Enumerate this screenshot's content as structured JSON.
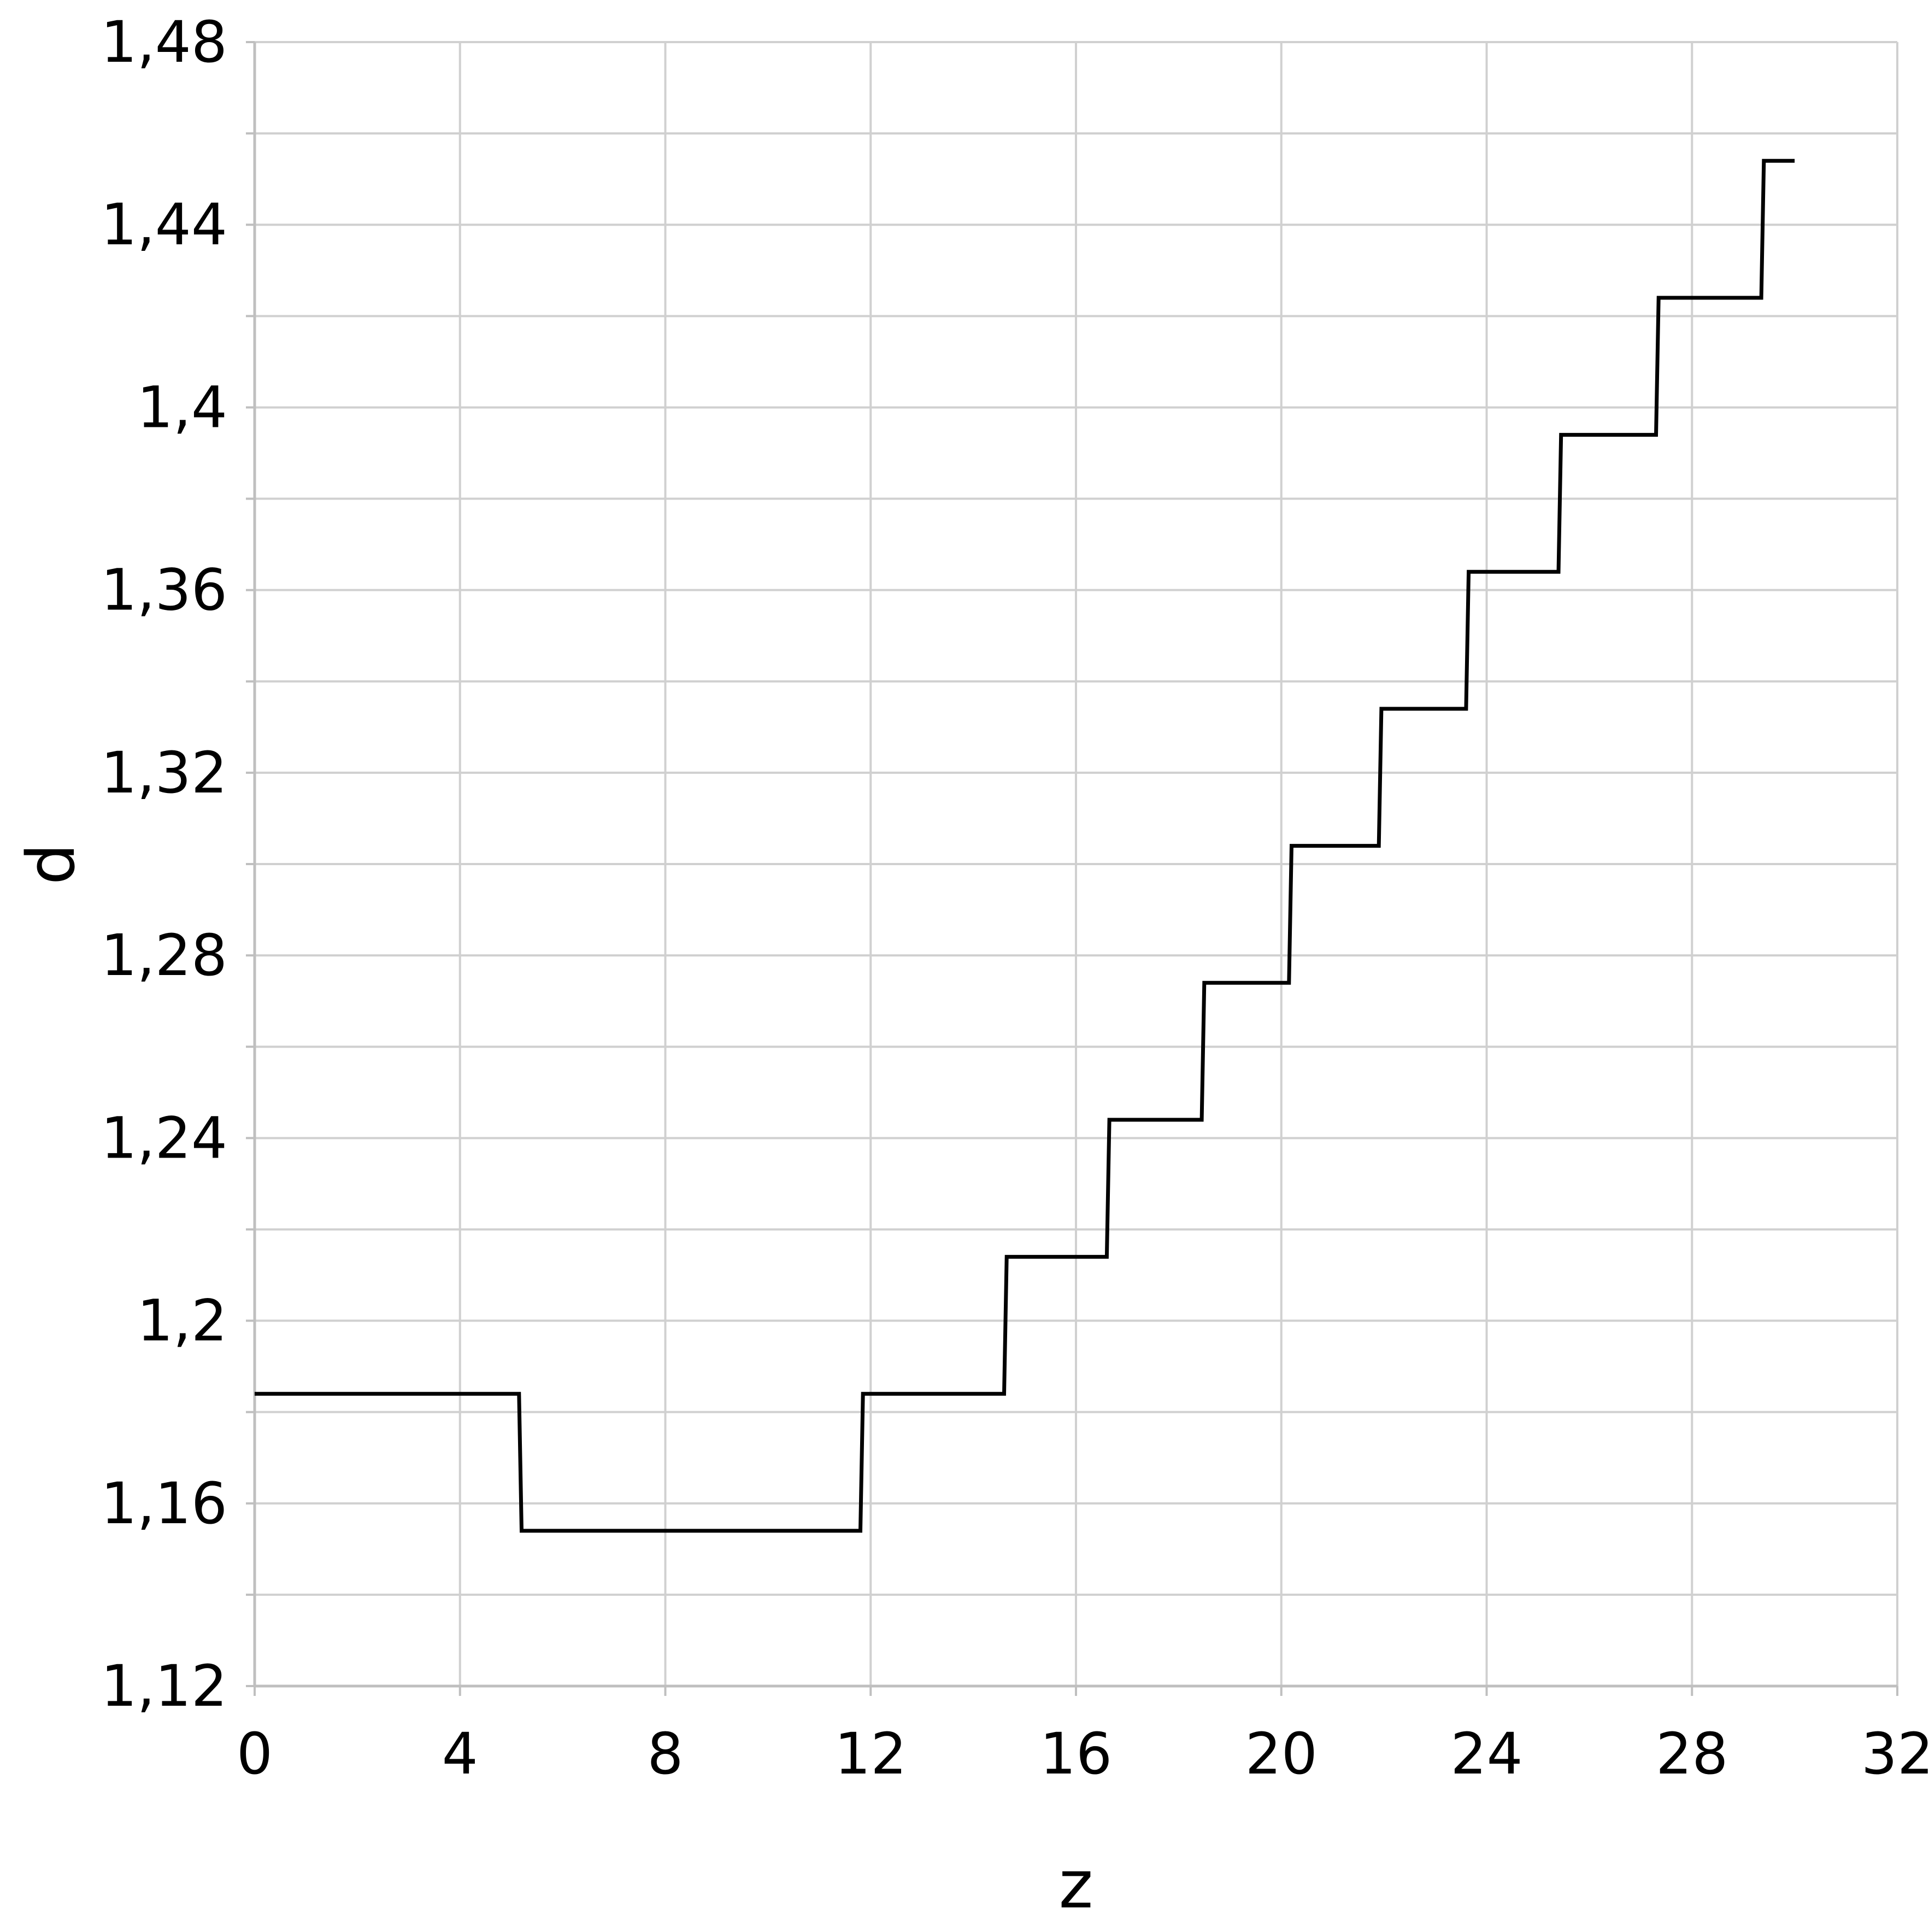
{
  "chart_data": {
    "type": "line",
    "step": true,
    "title": "",
    "xlabel": "z",
    "ylabel": "d",
    "xlim": [
      0,
      32
    ],
    "ylim": [
      1.12,
      1.48
    ],
    "x_ticks": [
      "0",
      "4",
      "8",
      "12",
      "16",
      "20",
      "24",
      "28",
      "32"
    ],
    "x_tick_values": [
      0,
      4,
      8,
      12,
      16,
      20,
      24,
      28,
      32
    ],
    "y_ticks": [
      "1,12",
      "1,16",
      "1,2",
      "1,24",
      "1,28",
      "1,32",
      "1,36",
      "1,4",
      "1,44",
      "1,48"
    ],
    "y_tick_values": [
      1.12,
      1.16,
      1.2,
      1.24,
      1.28,
      1.32,
      1.36,
      1.4,
      1.44,
      1.48
    ],
    "grid": true,
    "legend": "none",
    "colors": {
      "line": "#000000",
      "grid": "#d0d0d0",
      "axis": "#bfbfbf"
    },
    "series": [
      {
        "points": [
          [
            0,
            1.184
          ],
          [
            5.15,
            1.184
          ],
          [
            5.2,
            1.154
          ],
          [
            11.8,
            1.154
          ],
          [
            11.85,
            1.184
          ],
          [
            14.6,
            1.184
          ],
          [
            14.65,
            1.214
          ],
          [
            16.6,
            1.214
          ],
          [
            16.65,
            1.244
          ],
          [
            18.45,
            1.244
          ],
          [
            18.5,
            1.274
          ],
          [
            20.15,
            1.274
          ],
          [
            20.2,
            1.304
          ],
          [
            21.9,
            1.304
          ],
          [
            21.95,
            1.334
          ],
          [
            23.6,
            1.334
          ],
          [
            23.65,
            1.364
          ],
          [
            25.4,
            1.364
          ],
          [
            25.45,
            1.394
          ],
          [
            27.3,
            1.394
          ],
          [
            27.35,
            1.424
          ],
          [
            29.35,
            1.424
          ],
          [
            29.4,
            1.454
          ],
          [
            30,
            1.454
          ]
        ]
      }
    ]
  }
}
